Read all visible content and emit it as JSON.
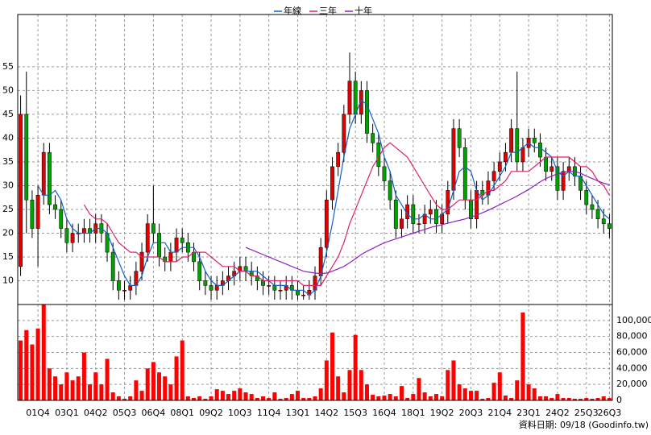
{
  "chart_data": [
    {
      "type": "candlestick",
      "categories": [
        null,
        null,
        null,
        "01Q4",
        null,
        null,
        null,
        null,
        "03Q1",
        null,
        null,
        null,
        null,
        "04Q2",
        null,
        null,
        null,
        null,
        "05Q3",
        null,
        null,
        null,
        null,
        "06Q4",
        null,
        null,
        null,
        null,
        "08Q1",
        null,
        null,
        null,
        null,
        "09Q2",
        null,
        null,
        null,
        null,
        "10Q3",
        null,
        null,
        null,
        null,
        "11Q4",
        null,
        null,
        null,
        null,
        "13Q1",
        null,
        null,
        null,
        null,
        "14Q2",
        null,
        null,
        null,
        null,
        "15Q3",
        null,
        null,
        null,
        null,
        "16Q4",
        null,
        null,
        null,
        null,
        "18Q1",
        null,
        null,
        null,
        null,
        "19Q2",
        null,
        null,
        null,
        null,
        "20Q3",
        null,
        null,
        null,
        null,
        "21Q4",
        null,
        null,
        null,
        null,
        "23Q1",
        null,
        null,
        null,
        null,
        "24Q2",
        null,
        null,
        null,
        null,
        "25Q3",
        null,
        null,
        null,
        "26Q3"
      ],
      "open": [
        13,
        45,
        27,
        21,
        28,
        37,
        26,
        25,
        21,
        18,
        20,
        20,
        21,
        20,
        22,
        20,
        16,
        10,
        8,
        8,
        9,
        12,
        16,
        22,
        20,
        15,
        14,
        16,
        19,
        18,
        16,
        14,
        10,
        9,
        8,
        9,
        10,
        11,
        12,
        13,
        12,
        11,
        10,
        9,
        9,
        8,
        8,
        9,
        8,
        7,
        7,
        8,
        11,
        17,
        27,
        34,
        37,
        45,
        52,
        45,
        50,
        41,
        39,
        34,
        31,
        27,
        21,
        23,
        26,
        22,
        22,
        24,
        25,
        22,
        24,
        29,
        42,
        38,
        27,
        23,
        29,
        28,
        31,
        33,
        35,
        37,
        42,
        35,
        38,
        40,
        39,
        36,
        33,
        34,
        29,
        33,
        34,
        32,
        29,
        26,
        25,
        23,
        22
      ],
      "high": [
        49,
        54,
        29,
        30,
        39,
        39,
        28,
        27,
        23,
        22,
        22,
        23,
        23,
        24,
        24,
        22,
        18,
        12,
        10,
        11,
        14,
        18,
        24,
        30,
        22,
        17,
        18,
        21,
        21,
        20,
        18,
        16,
        12,
        11,
        11,
        12,
        13,
        14,
        15,
        15,
        14,
        13,
        12,
        11,
        11,
        10,
        11,
        11,
        10,
        9,
        10,
        13,
        19,
        29,
        36,
        39,
        47,
        58,
        54,
        52,
        52,
        43,
        41,
        36,
        33,
        29,
        25,
        28,
        28,
        24,
        26,
        27,
        27,
        26,
        31,
        44,
        44,
        40,
        29,
        31,
        31,
        33,
        35,
        37,
        39,
        44,
        54,
        40,
        42,
        42,
        41,
        38,
        36,
        36,
        35,
        36,
        36,
        34,
        31,
        28,
        27,
        25,
        24
      ],
      "low": [
        11,
        20,
        19,
        13,
        26,
        24,
        23,
        19,
        16,
        16,
        18,
        18,
        18,
        18,
        18,
        14,
        8,
        6,
        6,
        6,
        7,
        10,
        14,
        18,
        13,
        12,
        12,
        14,
        16,
        14,
        12,
        8,
        7,
        6,
        6,
        7,
        8,
        9,
        10,
        10,
        9,
        8,
        7,
        7,
        6,
        6,
        6,
        6,
        6,
        6,
        6,
        6,
        9,
        15,
        25,
        32,
        35,
        43,
        43,
        43,
        39,
        37,
        32,
        29,
        25,
        19,
        19,
        21,
        20,
        20,
        20,
        22,
        20,
        20,
        22,
        27,
        36,
        25,
        21,
        21,
        26,
        26,
        29,
        31,
        33,
        35,
        33,
        33,
        36,
        37,
        34,
        31,
        31,
        27,
        27,
        31,
        30,
        27,
        24,
        23,
        21,
        20,
        19
      ],
      "close": [
        45,
        27,
        21,
        28,
        37,
        26,
        25,
        21,
        18,
        20,
        20,
        21,
        20,
        22,
        20,
        16,
        10,
        8,
        8,
        9,
        12,
        16,
        22,
        20,
        15,
        14,
        16,
        19,
        18,
        16,
        14,
        10,
        9,
        8,
        9,
        10,
        11,
        12,
        13,
        12,
        11,
        10,
        9,
        9,
        8,
        8,
        9,
        8,
        7,
        7,
        8,
        11,
        17,
        27,
        34,
        37,
        45,
        52,
        45,
        50,
        41,
        39,
        34,
        31,
        27,
        21,
        23,
        26,
        22,
        22,
        24,
        25,
        22,
        24,
        29,
        42,
        38,
        27,
        23,
        29,
        28,
        31,
        33,
        35,
        37,
        42,
        35,
        38,
        40,
        39,
        36,
        33,
        34,
        29,
        33,
        34,
        32,
        29,
        26,
        25,
        23,
        22,
        21
      ],
      "up_color": "#e00000",
      "down_color": "#00a000",
      "series": [
        {
          "name": "年線",
          "color": "#1060c8",
          "values": [
            null,
            null,
            null,
            30,
            28,
            28,
            29,
            27,
            23,
            21,
            20,
            20,
            20,
            21,
            21,
            20,
            17,
            14,
            11,
            9,
            9,
            11,
            15,
            18,
            18,
            18,
            16,
            16,
            17,
            17,
            17,
            15,
            12,
            10,
            9,
            9,
            10,
            11,
            12,
            12,
            12,
            12,
            11,
            10,
            9,
            9,
            9,
            8,
            8,
            8,
            7,
            8,
            11,
            16,
            22,
            29,
            36,
            42,
            45,
            48,
            47,
            44,
            41,
            36,
            33,
            28,
            26,
            24,
            23,
            23,
            24,
            23,
            23,
            24,
            25,
            29,
            33,
            34,
            33,
            29,
            27,
            28,
            30,
            32,
            34,
            37,
            37,
            38,
            39,
            38,
            38,
            37,
            36,
            33,
            32,
            33,
            32,
            32,
            30,
            28,
            26,
            24,
            23
          ]
        },
        {
          "name": "三年",
          "color": "#e0206a",
          "values": [
            null,
            null,
            null,
            null,
            null,
            null,
            null,
            null,
            null,
            null,
            null,
            26,
            24,
            23,
            23,
            22,
            20,
            18,
            17,
            16,
            16,
            15,
            15,
            15,
            15,
            14,
            14,
            14,
            15,
            15,
            16,
            16,
            16,
            15,
            14,
            13,
            13,
            13,
            12,
            12,
            11,
            11,
            10,
            10,
            10,
            10,
            10,
            10,
            10,
            9,
            9,
            9,
            9,
            11,
            13,
            15,
            18,
            22,
            25,
            28,
            31,
            34,
            36,
            38,
            39,
            38,
            37,
            36,
            34,
            32,
            30,
            28,
            26,
            25,
            25,
            26,
            27,
            27,
            27,
            27,
            28,
            29,
            29,
            30,
            31,
            33,
            33,
            33,
            33,
            34,
            35,
            36,
            36,
            36,
            36,
            36,
            35,
            34,
            34,
            33,
            31,
            30,
            28
          ]
        },
        {
          "name": "十年",
          "color": "#9020c0",
          "values": [
            null,
            null,
            null,
            null,
            null,
            null,
            null,
            null,
            null,
            null,
            null,
            null,
            null,
            null,
            null,
            null,
            null,
            null,
            null,
            null,
            null,
            null,
            null,
            null,
            null,
            null,
            null,
            null,
            null,
            null,
            null,
            null,
            null,
            null,
            null,
            null,
            null,
            null,
            null,
            17,
            16.5,
            16,
            15.5,
            15,
            14.5,
            14,
            13.5,
            13,
            12.5,
            12,
            11.8,
            11.6,
            11.5,
            11.6,
            12,
            12.5,
            13,
            13.8,
            14.6,
            15.5,
            16.2,
            16.8,
            17.4,
            18,
            18.4,
            18.8,
            19.2,
            19.6,
            20,
            20.4,
            20.8,
            21.2,
            21.5,
            21.8,
            22.1,
            22.4,
            22.7,
            23,
            23.4,
            23.8,
            24.3,
            24.8,
            25.4,
            26,
            26.6,
            27.2,
            27.8,
            28.5,
            29.2,
            30,
            30.8,
            31.5,
            32,
            32.5,
            32.8,
            33,
            33,
            32.6,
            32,
            31.5,
            31,
            30.5,
            30.2
          ]
        }
      ],
      "ylim": [
        5,
        66
      ],
      "yticks": [
        10,
        15,
        20,
        25,
        30,
        35,
        40,
        45,
        50,
        55
      ],
      "grid": true
    },
    {
      "type": "bar",
      "color": "#ff0000",
      "values": [
        75000,
        88000,
        70000,
        90000,
        120000,
        40000,
        30000,
        20000,
        35000,
        25000,
        30000,
        60000,
        20000,
        35000,
        20000,
        52000,
        10000,
        5000,
        2000,
        5000,
        25000,
        12000,
        40000,
        48000,
        35000,
        30000,
        20000,
        55000,
        75000,
        5000,
        3000,
        5000,
        2000,
        5000,
        14000,
        12000,
        8000,
        12000,
        15000,
        10000,
        8000,
        3000,
        5000,
        3000,
        10000,
        2000,
        3000,
        8000,
        12000,
        3000,
        3000,
        5000,
        15000,
        50000,
        85000,
        30000,
        10000,
        38000,
        82000,
        38000,
        20000,
        7000,
        5000,
        6000,
        8000,
        5000,
        18000,
        3000,
        8000,
        28000,
        10000,
        5000,
        8000,
        5000,
        38000,
        50000,
        20000,
        15000,
        12000,
        12000,
        2000,
        3000,
        22000,
        35000,
        6000,
        3000,
        25000,
        110000,
        20000,
        15000,
        5000,
        5000,
        3000,
        8000,
        3000,
        3000,
        2000,
        2000,
        3000,
        2000,
        3000,
        5000,
        3000
      ],
      "ylim": [
        0,
        120000
      ],
      "yticks": [
        0,
        {
          "value": 20000,
          "label": "20,000"
        },
        {
          "value": 40000,
          "label": "40,000"
        },
        {
          "value": 60000,
          "label": "60,000"
        },
        {
          "value": 80000,
          "label": "80,000"
        },
        {
          "value": 100000,
          "label": "100,000"
        }
      ],
      "grid": true,
      "footnote": "資料日期: 09/18  (Goodinfo.tw)"
    }
  ]
}
